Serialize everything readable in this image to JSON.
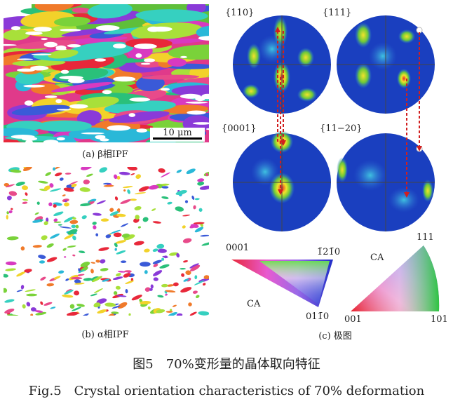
{
  "panel_a": {
    "caption": "(a) β相IPF",
    "scale_bar": "10 μm"
  },
  "panel_b": {
    "caption": "(b) α相IPF"
  },
  "panel_c": {
    "caption": "(c) 极图",
    "pole_labels": [
      "{110}",
      "{111}",
      "{0001}",
      "{11−20}"
    ],
    "hex_triangle": {
      "vertex_0001": "0001",
      "vertex_top": "1̄21̄0",
      "vertex_bottom": "011̄0",
      "ca": "CA"
    },
    "cubic_triangle": {
      "vertex_111": "111",
      "vertex_001": "001",
      "vertex_101": "101",
      "ca": "CA"
    }
  },
  "figure_caption_cn": "图5　70%变形量的晶体取向特征",
  "figure_caption_en": "Fig.5　Crystal orientation characteristics of 70% deformation"
}
